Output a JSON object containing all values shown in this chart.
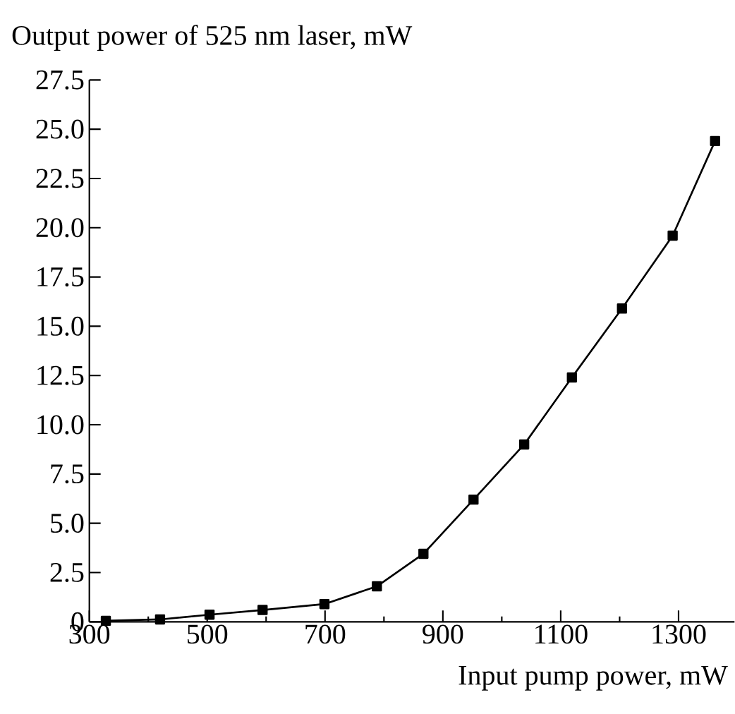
{
  "chart_data": {
    "type": "line",
    "ylabel": "Output power of 525 nm laser, mW",
    "xlabel": "Input pump power, mW",
    "x": [
      328,
      420,
      504,
      594,
      699,
      788,
      867,
      952,
      1038,
      1119,
      1204,
      1290,
      1362
    ],
    "series": [
      {
        "color": "#000000",
        "values": [
          0.05,
          0.12,
          0.36,
          0.6,
          0.9,
          1.8,
          3.45,
          6.2,
          9.0,
          12.4,
          15.9,
          19.6,
          24.4
        ]
      }
    ],
    "xlim": [
      300,
      1395
    ],
    "ylim": [
      0,
      27.5
    ],
    "xticks": [
      300,
      500,
      700,
      900,
      1100,
      1300
    ],
    "yticks": [
      0,
      2.5,
      {
        "value": 5,
        "label": "5.0"
      },
      7.5,
      {
        "value": 10,
        "label": "10.0"
      },
      12.5,
      {
        "value": 15,
        "label": "15.0"
      },
      17.5,
      {
        "value": 20,
        "label": "20.0"
      },
      22.5,
      {
        "value": 25,
        "label": "25.0"
      },
      27.5
    ],
    "marker": "square",
    "line_style": "solid",
    "grid": false
  }
}
